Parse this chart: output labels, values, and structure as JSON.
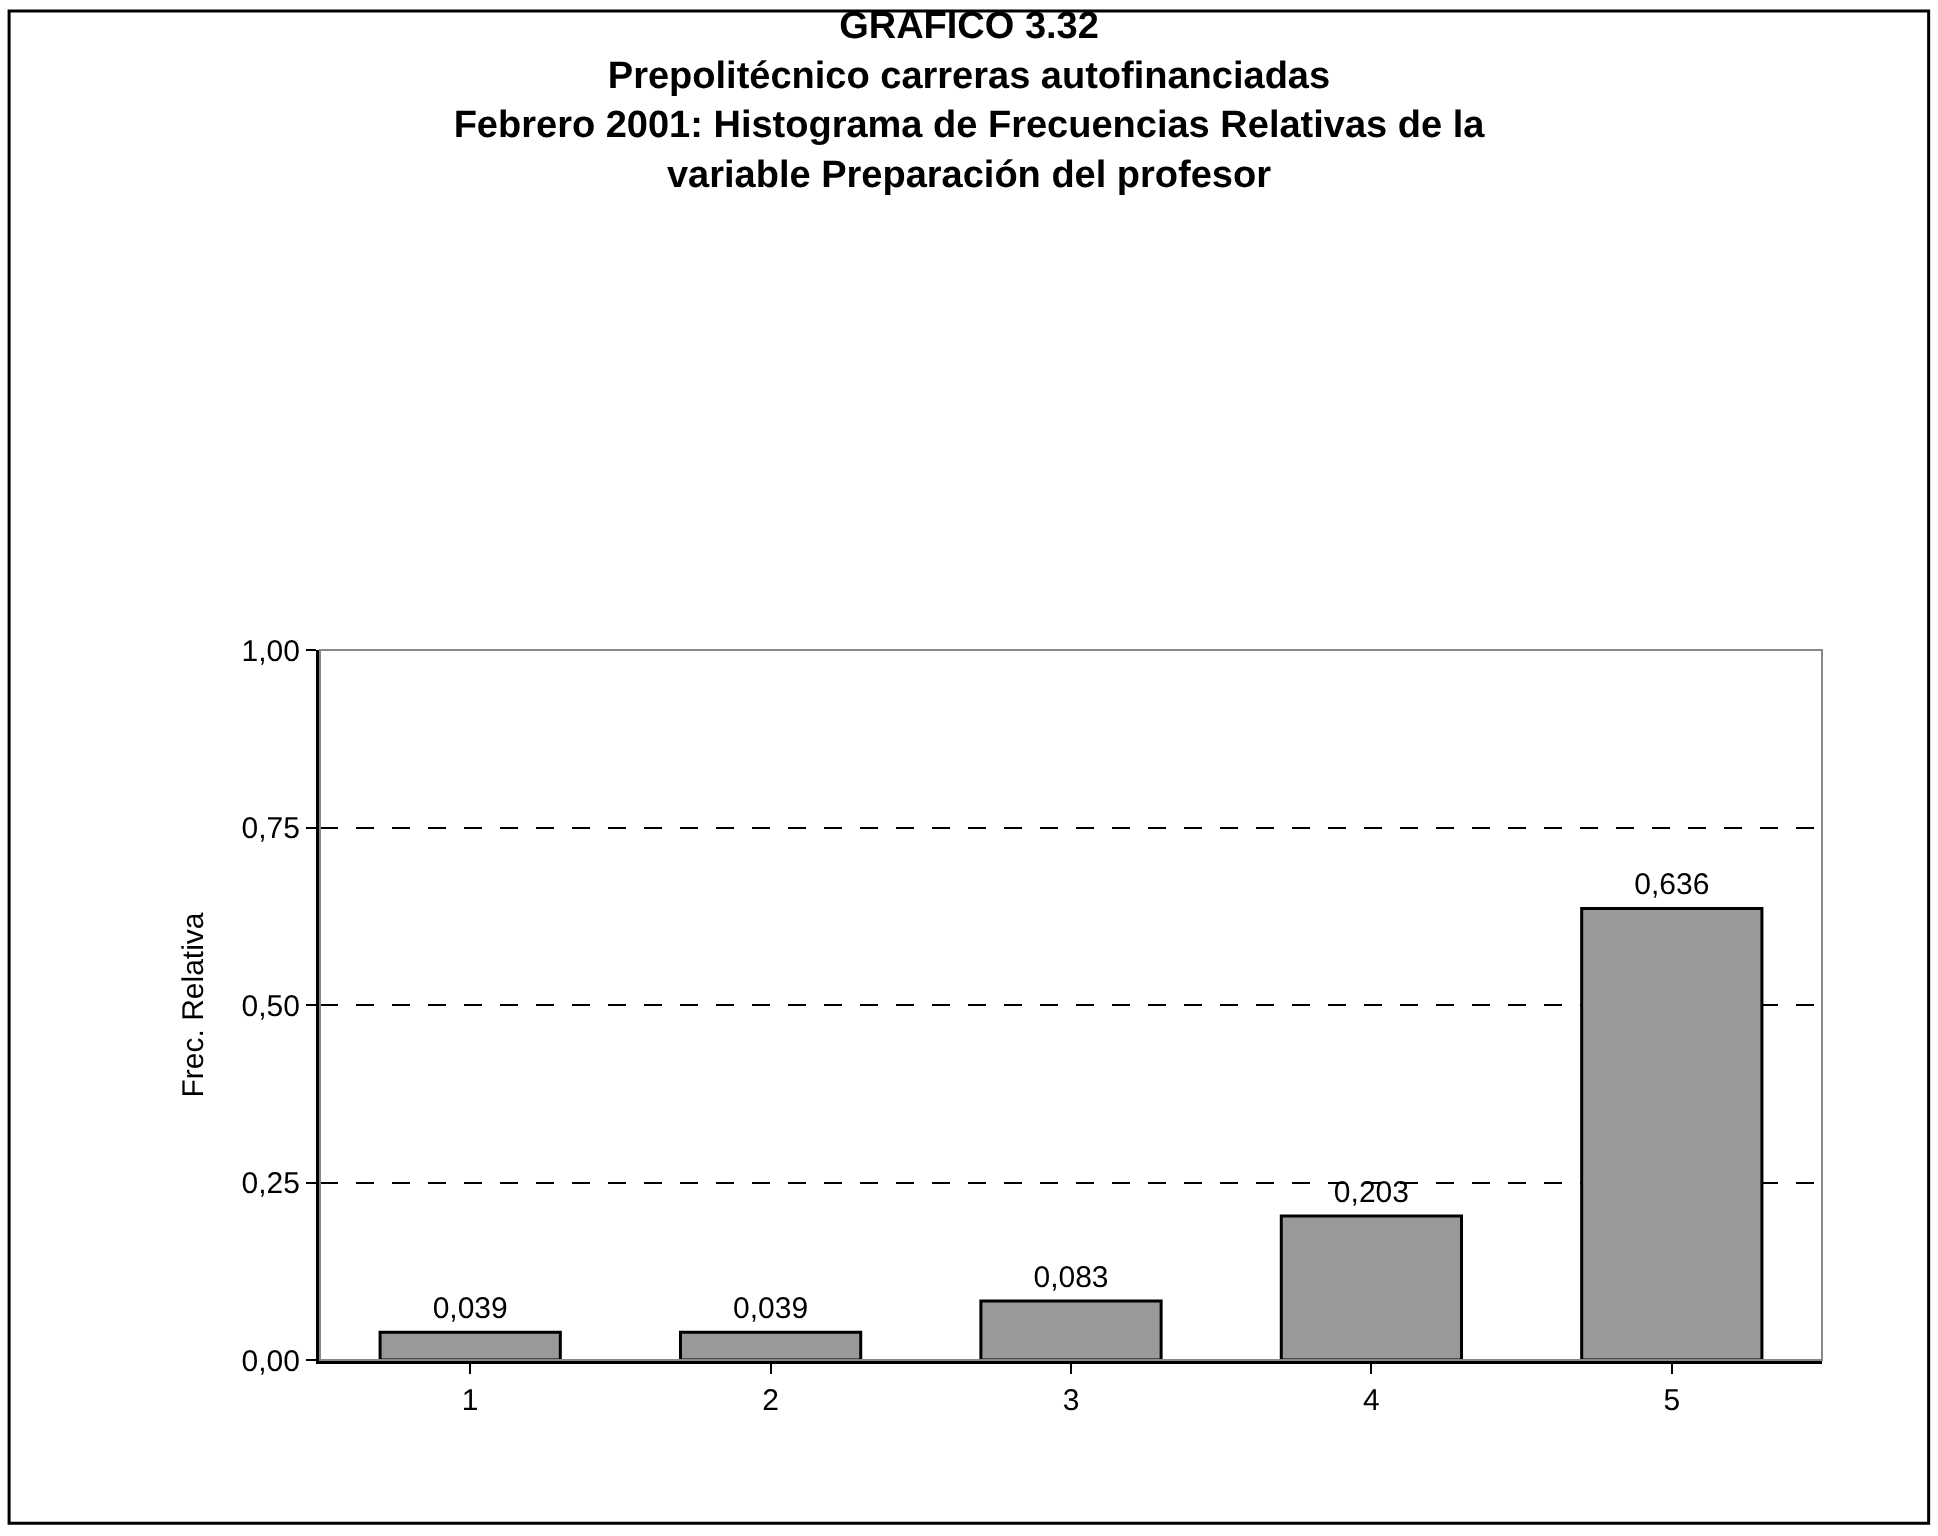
{
  "chart_data": {
    "type": "bar",
    "title": "GRAFICO 3.32\nPrepolitécnico carreras autofinanciadas\nFebrero 2001: Histograma de Frecuencias Relativas de la\nvariable Preparación del profesor",
    "ylabel": "Frec. Relativa",
    "categories": [
      "1",
      "2",
      "3",
      "4",
      "5"
    ],
    "values": [
      0.039,
      0.039,
      0.083,
      0.203,
      0.636
    ],
    "value_labels": [
      "0,039",
      "0,039",
      "0,083",
      "0,203",
      "0,636"
    ],
    "color": "#999999",
    "ylim": [
      0,
      1
    ],
    "yticks": [
      {
        "value": 0,
        "label": "0,00"
      },
      {
        "value": 0.25,
        "label": "0,25"
      },
      {
        "value": 0.5,
        "label": "0,50"
      },
      {
        "value": 0.75,
        "label": "0,75"
      },
      {
        "value": 1,
        "label": "1,00"
      }
    ],
    "grid": "y",
    "line_style": "dashed"
  }
}
